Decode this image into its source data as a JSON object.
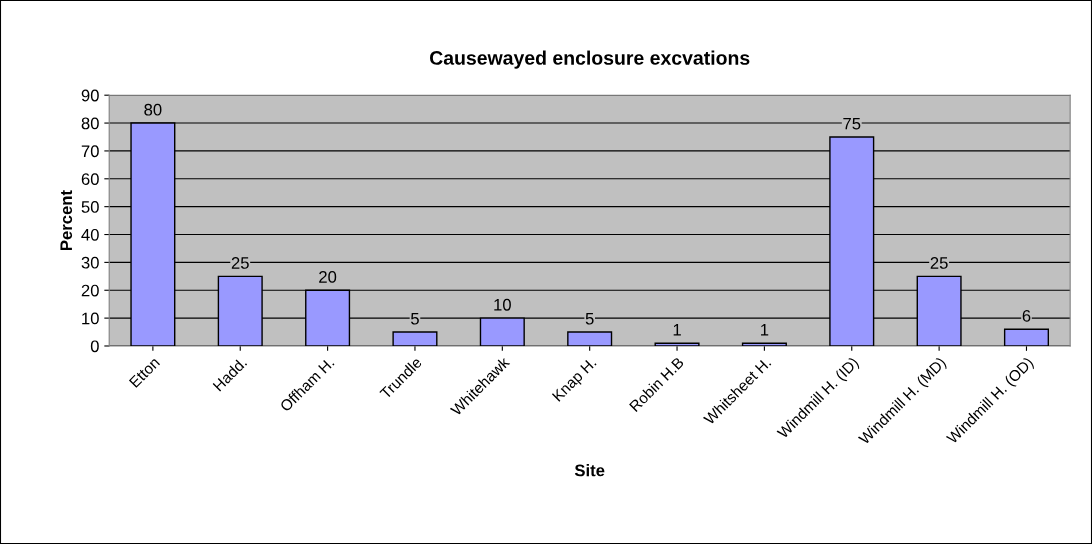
{
  "chart_data": {
    "type": "bar",
    "title": "Causewayed enclosure excvations",
    "xlabel": "Site",
    "ylabel": "Percent",
    "categories": [
      "Etton",
      "Hadd.",
      "Offham H.",
      "Trundle",
      "Whitehawk",
      "Knap H.",
      "Robin H.B",
      "Whitsheet H.",
      "Windmill H. (ID)",
      "Windmill H. (MD)",
      "Windmill H. (OD)"
    ],
    "values": [
      80,
      25,
      20,
      5,
      10,
      5,
      1,
      1,
      75,
      25,
      6
    ],
    "color": "#9999ff",
    "ylim": [
      0,
      90
    ],
    "yticks": [
      0,
      10,
      20,
      30,
      40,
      50,
      60,
      70,
      80,
      90
    ],
    "grid": "y",
    "data_labels": true,
    "legend": false
  }
}
